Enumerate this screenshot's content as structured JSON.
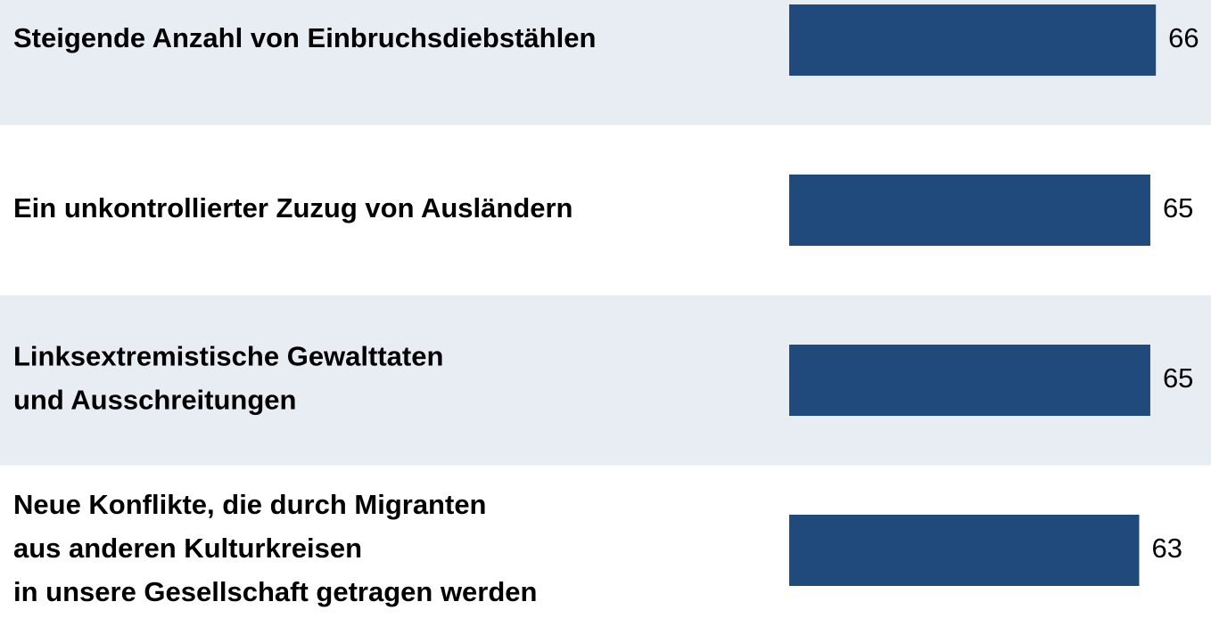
{
  "chart_data": {
    "type": "bar",
    "orientation": "horizontal",
    "categories": [
      "Steigende Anzahl von Einbruchsdiebstählen",
      "Ein unkontrollierter Zuzug von Ausländern",
      "Linksextremistische Gewalttaten\nund Ausschreitungen",
      "Neue Konflikte, die durch Migranten\naus anderen Kulturkreisen\nin unsere Gesellschaft getragen werden"
    ],
    "values": [
      66,
      65,
      65,
      63
    ],
    "color": "#214a7c"
  }
}
